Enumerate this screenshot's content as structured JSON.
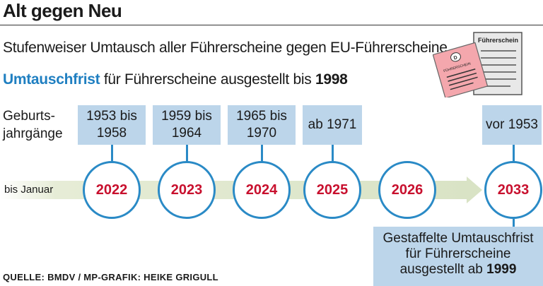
{
  "title": "Alt gegen Neu",
  "subtitle": "Stufenweiser Umtausch aller Führerscheine gegen EU-Führerscheine",
  "deadline": {
    "highlight": "Umtauschfrist",
    "text": " für Führerscheine ausgestellt bis ",
    "year": "1998"
  },
  "cohort_label_line1": "Geburts-",
  "cohort_label_line2": "jahrgänge",
  "timeline_start_label": "bis Januar",
  "stages": [
    {
      "cohort_line1": "1953 bis",
      "cohort_line2": "1958",
      "deadline_year": "2022"
    },
    {
      "cohort_line1": "1959 bis",
      "cohort_line2": "1964",
      "deadline_year": "2023"
    },
    {
      "cohort_line1": "1965 bis",
      "cohort_line2": "1970",
      "deadline_year": "2024"
    },
    {
      "cohort_line1": "ab 1971",
      "cohort_line2": "",
      "deadline_year": "2025"
    },
    {
      "cohort_line1": "",
      "cohort_line2": "",
      "deadline_year": "2026"
    },
    {
      "cohort_line1": "vor 1953",
      "cohort_line2": "",
      "deadline_year": "2033"
    }
  ],
  "note": {
    "line1": "Gestaffelte Umtauschfrist",
    "line2": "für Führerscheine",
    "line3": "ausgestellt ab ",
    "year": "1999"
  },
  "license_card_label": "Führerschein",
  "license_old_label": "FÜHRERSCHEIN",
  "license_old_badge": "D",
  "source": "QUELLE:  BMDV / MP-GRAFIK: HEIKE GRIGULL",
  "colors": {
    "accent_blue": "#2a8ac6",
    "box_blue": "#bcd5ea",
    "year_red": "#c8102e",
    "highlight_blue": "#1f7fc1"
  }
}
